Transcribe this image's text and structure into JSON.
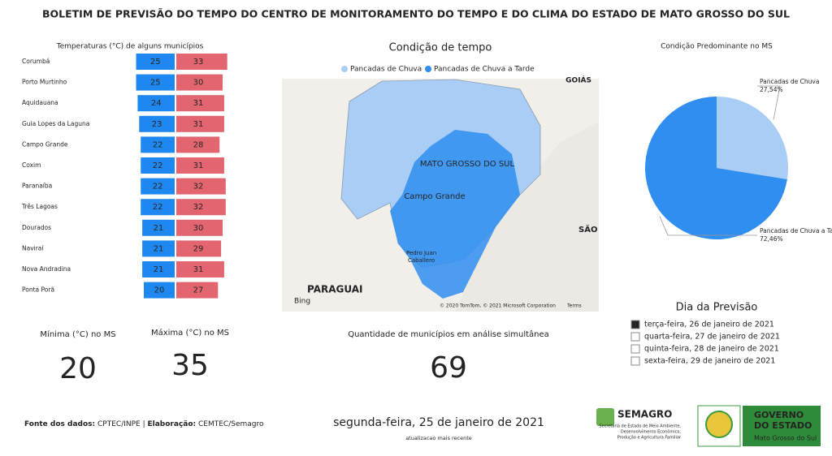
{
  "title": "BOLETIM DE PREVISÃO DO TEMPO DO CENTRO DE MONITORAMENTO DO TEMPO E DO CLIMA DO ESTADO DE MATO GROSSO DO SUL",
  "chart_data": [
    {
      "type": "paired-bar",
      "title": "Temperaturas (°C) de alguns municípios",
      "categories": [
        "Corumbá",
        "Porto Murtinho",
        "Aquidauana",
        "Guia Lopes da Laguna",
        "Campo Grande",
        "Coxim",
        "Paranaíba",
        "Três Lagoas",
        "Dourados",
        "Naviraí",
        "Nova Andradina",
        "Ponta Porã"
      ],
      "series": [
        {
          "color": "#1e88f0",
          "values": [
            25,
            25,
            24,
            23,
            22,
            22,
            22,
            22,
            21,
            21,
            21,
            20
          ]
        },
        {
          "color": "#e36570",
          "values": [
            33,
            30,
            31,
            31,
            28,
            31,
            32,
            32,
            30,
            29,
            31,
            27
          ]
        }
      ]
    },
    {
      "type": "pie",
      "title": "Condição Predominante no MS",
      "categories": [
        "Pancadas de Chuva",
        "Pancadas de Chuva a Tar..."
      ],
      "values": [
        27.54,
        72.46
      ],
      "value_labels": [
        "27,54%",
        "72,46%"
      ],
      "colors": [
        "#a9cdf5",
        "#2f8ef0"
      ]
    }
  ],
  "map": {
    "title": "Condição de tempo",
    "legend": [
      {
        "name": "Pancadas de Chuva",
        "color": "#a9cdf5"
      },
      {
        "name": "Pancadas de Chuva a Tarde",
        "color": "#2f8ef0"
      }
    ],
    "labels": [
      "GOIÁS",
      "MATO GROSSO DO SUL",
      "Campo Grande",
      "SÃO",
      "PARAGUAI",
      "Pedro Juan",
      "Caballero"
    ],
    "attribution": "© 2020 TomTom, © 2021 Microsoft Corporation",
    "terms": "Terms",
    "provider": "Bing"
  },
  "kpis": [
    {
      "label": "Mínima (°C) no MS",
      "value": "20"
    },
    {
      "label": "Máxima (°C) no MS",
      "value": "35"
    },
    {
      "label": "Quantidade de municípios em análise simultânea",
      "value": "69"
    }
  ],
  "slicer": {
    "title": "Dia da Previsão",
    "items": [
      "terça-feira, 26 de janeiro de 2021",
      "quarta-feira, 27 de janeiro de 2021",
      "quinta-feira, 28 de janeiro de 2021",
      "sexta-feira, 29 de janeiro de 2021"
    ]
  },
  "footer": {
    "source_label": "Fonte dos dados:",
    "source_value": "CPTEC/INPE |",
    "credit_label": "Elaboração:",
    "credit_value": "CEMTEC/Semagro",
    "date": "segunda-feira, 25 de janeiro de 2021",
    "date_note": "atualizacao mais recente",
    "semagro": "SEMAGRO",
    "semagro_sub": [
      "Secretaria de Estado de Meio Ambiente,",
      "Desenvolvimento Econômico,",
      "Produção e Agricultura Familiar"
    ],
    "gov": [
      "GOVERNO",
      "DO ESTADO"
    ],
    "gov_sub": "Mato Grosso do Sul"
  }
}
